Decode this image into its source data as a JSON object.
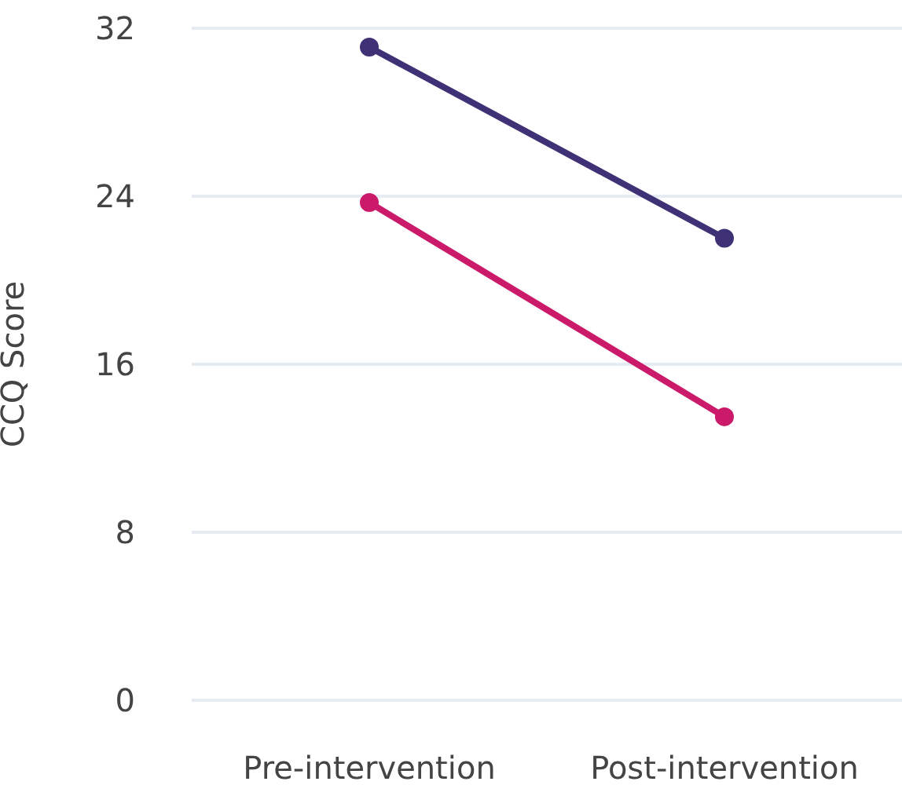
{
  "chart_data": {
    "type": "line",
    "ylabel": "CCQ Score",
    "categories": [
      "Pre-intervention",
      "Post-intervention"
    ],
    "series": [
      {
        "color": "#3f3175",
        "values": [
          31.1,
          22
        ]
      },
      {
        "color": "#cc1a6b",
        "values": [
          23.7,
          13.5
        ]
      }
    ],
    "ylim": [
      0,
      32
    ],
    "yticks": [
      0,
      8,
      16,
      24,
      32
    ],
    "grid": "y",
    "marker": "circle",
    "line_style": "solid"
  }
}
